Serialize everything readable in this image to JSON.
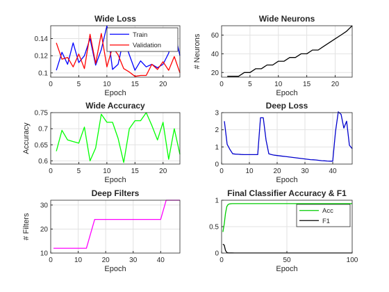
{
  "chart_data": [
    {
      "type": "line",
      "title": "Wide Loss",
      "xlabel": "Epoch",
      "ylabel": "",
      "xlim": [
        0,
        23
      ],
      "ylim": [
        0.095,
        0.155
      ],
      "xticks": [
        0,
        5,
        10,
        15,
        20
      ],
      "yticks": [
        0.1,
        0.12,
        0.14
      ],
      "ytick_labels": [
        "0.1",
        "0.12",
        "0.14"
      ],
      "grid": true,
      "legend": "top-right",
      "series": [
        {
          "name": "Train",
          "color": "#0000ff",
          "x": [
            1,
            2,
            3,
            4,
            5,
            6,
            7,
            8,
            9,
            10,
            11,
            12,
            13,
            14,
            15,
            16,
            17,
            18,
            19,
            20,
            21,
            22,
            23
          ],
          "y": [
            0.103,
            0.124,
            0.11,
            0.135,
            0.112,
            0.12,
            0.14,
            0.109,
            0.127,
            0.155,
            0.104,
            0.11,
            0.14,
            0.121,
            0.103,
            0.114,
            0.107,
            0.11,
            0.106,
            0.11,
            0.123,
            0.15,
            0.12
          ]
        },
        {
          "name": "Validation",
          "color": "#ff0000",
          "x": [
            1,
            2,
            3,
            4,
            5,
            6,
            7,
            8,
            9,
            10,
            11,
            12,
            13,
            14,
            15,
            16,
            17,
            18,
            19,
            20,
            21,
            22,
            23
          ],
          "y": [
            0.135,
            0.116,
            0.118,
            0.107,
            0.122,
            0.105,
            0.145,
            0.111,
            0.146,
            0.107,
            0.13,
            0.121,
            0.105,
            0.101,
            0.096,
            0.097,
            0.097,
            0.11,
            0.104,
            0.113,
            0.103,
            0.119,
            0.1
          ]
        }
      ]
    },
    {
      "type": "line",
      "title": "Wide Neurons",
      "xlabel": "Epoch",
      "ylabel": "# Neurons",
      "xlim": [
        0,
        23
      ],
      "ylim": [
        15,
        70
      ],
      "xticks": [
        0,
        5,
        10,
        15,
        20
      ],
      "yticks": [
        20,
        40,
        60
      ],
      "grid": true,
      "series": [
        {
          "name": "",
          "color": "#000000",
          "x": [
            1,
            2,
            3,
            4,
            5,
            6,
            7,
            8,
            9,
            10,
            11,
            12,
            13,
            14,
            15,
            16,
            17,
            18,
            19,
            20,
            21,
            22,
            23
          ],
          "y": [
            16,
            16,
            16,
            20,
            20,
            24,
            24,
            28,
            28,
            32,
            32,
            36,
            36,
            40,
            40,
            44,
            44,
            48,
            52,
            56,
            60,
            64,
            70
          ]
        }
      ]
    },
    {
      "type": "line",
      "title": "Wide Accuracy",
      "xlabel": "Epoch",
      "ylabel": "Accuracy",
      "xlim": [
        0,
        23
      ],
      "ylim": [
        0.59,
        0.75
      ],
      "xticks": [
        0,
        5,
        10,
        15,
        20
      ],
      "yticks": [
        0.6,
        0.65,
        0.7,
        0.75
      ],
      "grid": true,
      "series": [
        {
          "name": "",
          "color": "#00ff00",
          "x": [
            1,
            2,
            3,
            4,
            5,
            6,
            7,
            8,
            9,
            10,
            11,
            12,
            13,
            14,
            15,
            16,
            17,
            18,
            19,
            20,
            21,
            22,
            23
          ],
          "y": [
            0.63,
            0.695,
            0.665,
            0.66,
            0.655,
            0.705,
            0.6,
            0.64,
            0.745,
            0.72,
            0.72,
            0.67,
            0.595,
            0.7,
            0.725,
            0.725,
            0.75,
            0.71,
            0.665,
            0.72,
            0.605,
            0.7,
            0.62
          ]
        }
      ]
    },
    {
      "type": "line",
      "title": "Deep Loss",
      "xlabel": "Epoch",
      "ylabel": "",
      "xlim": [
        0,
        47
      ],
      "ylim": [
        0,
        3
      ],
      "xticks": [
        0,
        10,
        20,
        30,
        40
      ],
      "yticks": [
        0,
        1,
        2,
        3
      ],
      "grid": true,
      "series": [
        {
          "name": "",
          "color": "#0000cc",
          "x": [
            1,
            2,
            3,
            4,
            5,
            6,
            7,
            8,
            9,
            10,
            11,
            12,
            13,
            14,
            15,
            16,
            17,
            18,
            19,
            20,
            21,
            22,
            23,
            24,
            25,
            26,
            27,
            28,
            29,
            30,
            31,
            32,
            33,
            34,
            35,
            36,
            37,
            38,
            39,
            40,
            41,
            42,
            43,
            44,
            45,
            46,
            47
          ],
          "y": [
            2.5,
            1.15,
            0.85,
            0.6,
            0.58,
            0.57,
            0.56,
            0.55,
            0.55,
            0.55,
            0.55,
            0.55,
            0.55,
            2.7,
            2.7,
            1.4,
            0.6,
            0.55,
            0.52,
            0.5,
            0.48,
            0.46,
            0.44,
            0.42,
            0.4,
            0.38,
            0.36,
            0.34,
            0.32,
            0.3,
            0.28,
            0.26,
            0.25,
            0.24,
            0.22,
            0.2,
            0.19,
            0.18,
            0.17,
            0.17,
            1.9,
            3.05,
            2.9,
            2.1,
            2.5,
            1.1,
            0.9
          ]
        }
      ]
    },
    {
      "type": "line",
      "title": "Deep Filters",
      "xlabel": "Epoch",
      "ylabel": "# Filters",
      "xlim": [
        0,
        47
      ],
      "ylim": [
        10,
        32
      ],
      "xticks": [
        0,
        10,
        20,
        30,
        40
      ],
      "yticks": [
        10,
        20,
        30
      ],
      "grid": true,
      "series": [
        {
          "name": "",
          "color": "#ff00ff",
          "x": [
            1,
            13,
            16,
            40,
            42,
            47
          ],
          "y": [
            12,
            12,
            24,
            24,
            32,
            32
          ]
        }
      ]
    },
    {
      "type": "line",
      "title": "Final Classifier Accuracy & F1",
      "xlabel": "Epoch",
      "ylabel": "",
      "xlim": [
        0,
        100
      ],
      "ylim": [
        0,
        1
      ],
      "xticks": [
        0,
        50,
        100
      ],
      "yticks": [
        0,
        0.5,
        1
      ],
      "grid": true,
      "legend": "top-right",
      "series": [
        {
          "name": "Acc",
          "color": "#00cc00",
          "x": [
            1,
            2,
            3,
            4,
            5,
            6,
            8,
            10,
            15,
            20,
            30,
            50,
            70,
            100
          ],
          "y": [
            0.4,
            0.55,
            0.75,
            0.88,
            0.92,
            0.93,
            0.935,
            0.935,
            0.935,
            0.935,
            0.935,
            0.935,
            0.935,
            0.935
          ]
        },
        {
          "name": "F1",
          "color": "#000000",
          "x": [
            1,
            2,
            3,
            4,
            5,
            6,
            8,
            10,
            15,
            20,
            30,
            50,
            70,
            100
          ],
          "y": [
            0.17,
            0.15,
            0.05,
            0.01,
            0.005,
            0.003,
            0.002,
            0.001,
            0.001,
            0.001,
            0.001,
            0.001,
            0.001,
            0.001
          ]
        }
      ]
    }
  ]
}
